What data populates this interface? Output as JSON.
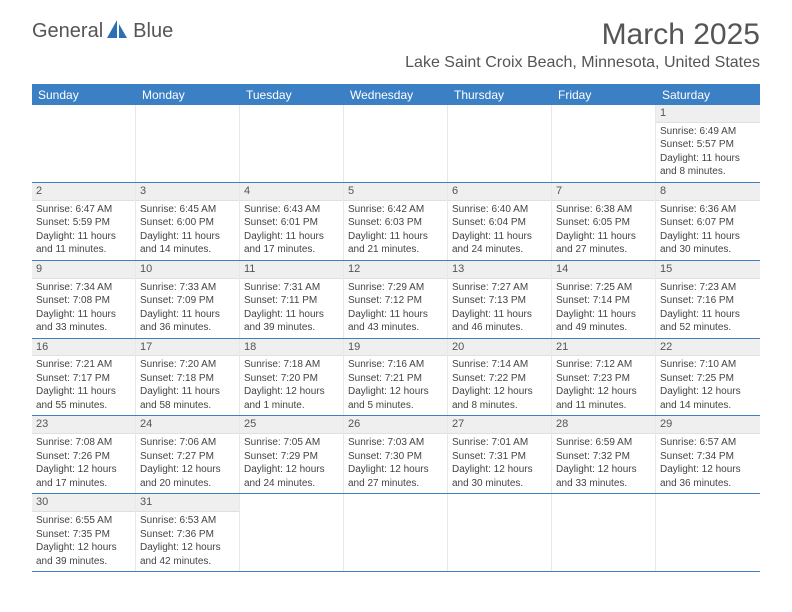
{
  "brand": {
    "name1": "General",
    "name2": "Blue",
    "icon_color": "#2d6fb3"
  },
  "title": "March 2025",
  "location": "Lake Saint Croix Beach, Minnesota, United States",
  "colors": {
    "header_bg": "#3b7fc4",
    "header_text": "#ffffff",
    "daynum_bg": "#efefef",
    "border": "#3b7fc4",
    "text": "#444444"
  },
  "weekdays": [
    "Sunday",
    "Monday",
    "Tuesday",
    "Wednesday",
    "Thursday",
    "Friday",
    "Saturday"
  ],
  "weeks": [
    [
      null,
      null,
      null,
      null,
      null,
      null,
      {
        "n": "1",
        "sr": "6:49 AM",
        "ss": "5:57 PM",
        "dl": "11 hours and 8 minutes."
      }
    ],
    [
      {
        "n": "2",
        "sr": "6:47 AM",
        "ss": "5:59 PM",
        "dl": "11 hours and 11 minutes."
      },
      {
        "n": "3",
        "sr": "6:45 AM",
        "ss": "6:00 PM",
        "dl": "11 hours and 14 minutes."
      },
      {
        "n": "4",
        "sr": "6:43 AM",
        "ss": "6:01 PM",
        "dl": "11 hours and 17 minutes."
      },
      {
        "n": "5",
        "sr": "6:42 AM",
        "ss": "6:03 PM",
        "dl": "11 hours and 21 minutes."
      },
      {
        "n": "6",
        "sr": "6:40 AM",
        "ss": "6:04 PM",
        "dl": "11 hours and 24 minutes."
      },
      {
        "n": "7",
        "sr": "6:38 AM",
        "ss": "6:05 PM",
        "dl": "11 hours and 27 minutes."
      },
      {
        "n": "8",
        "sr": "6:36 AM",
        "ss": "6:07 PM",
        "dl": "11 hours and 30 minutes."
      }
    ],
    [
      {
        "n": "9",
        "sr": "7:34 AM",
        "ss": "7:08 PM",
        "dl": "11 hours and 33 minutes."
      },
      {
        "n": "10",
        "sr": "7:33 AM",
        "ss": "7:09 PM",
        "dl": "11 hours and 36 minutes."
      },
      {
        "n": "11",
        "sr": "7:31 AM",
        "ss": "7:11 PM",
        "dl": "11 hours and 39 minutes."
      },
      {
        "n": "12",
        "sr": "7:29 AM",
        "ss": "7:12 PM",
        "dl": "11 hours and 43 minutes."
      },
      {
        "n": "13",
        "sr": "7:27 AM",
        "ss": "7:13 PM",
        "dl": "11 hours and 46 minutes."
      },
      {
        "n": "14",
        "sr": "7:25 AM",
        "ss": "7:14 PM",
        "dl": "11 hours and 49 minutes."
      },
      {
        "n": "15",
        "sr": "7:23 AM",
        "ss": "7:16 PM",
        "dl": "11 hours and 52 minutes."
      }
    ],
    [
      {
        "n": "16",
        "sr": "7:21 AM",
        "ss": "7:17 PM",
        "dl": "11 hours and 55 minutes."
      },
      {
        "n": "17",
        "sr": "7:20 AM",
        "ss": "7:18 PM",
        "dl": "11 hours and 58 minutes."
      },
      {
        "n": "18",
        "sr": "7:18 AM",
        "ss": "7:20 PM",
        "dl": "12 hours and 1 minute."
      },
      {
        "n": "19",
        "sr": "7:16 AM",
        "ss": "7:21 PM",
        "dl": "12 hours and 5 minutes."
      },
      {
        "n": "20",
        "sr": "7:14 AM",
        "ss": "7:22 PM",
        "dl": "12 hours and 8 minutes."
      },
      {
        "n": "21",
        "sr": "7:12 AM",
        "ss": "7:23 PM",
        "dl": "12 hours and 11 minutes."
      },
      {
        "n": "22",
        "sr": "7:10 AM",
        "ss": "7:25 PM",
        "dl": "12 hours and 14 minutes."
      }
    ],
    [
      {
        "n": "23",
        "sr": "7:08 AM",
        "ss": "7:26 PM",
        "dl": "12 hours and 17 minutes."
      },
      {
        "n": "24",
        "sr": "7:06 AM",
        "ss": "7:27 PM",
        "dl": "12 hours and 20 minutes."
      },
      {
        "n": "25",
        "sr": "7:05 AM",
        "ss": "7:29 PM",
        "dl": "12 hours and 24 minutes."
      },
      {
        "n": "26",
        "sr": "7:03 AM",
        "ss": "7:30 PM",
        "dl": "12 hours and 27 minutes."
      },
      {
        "n": "27",
        "sr": "7:01 AM",
        "ss": "7:31 PM",
        "dl": "12 hours and 30 minutes."
      },
      {
        "n": "28",
        "sr": "6:59 AM",
        "ss": "7:32 PM",
        "dl": "12 hours and 33 minutes."
      },
      {
        "n": "29",
        "sr": "6:57 AM",
        "ss": "7:34 PM",
        "dl": "12 hours and 36 minutes."
      }
    ],
    [
      {
        "n": "30",
        "sr": "6:55 AM",
        "ss": "7:35 PM",
        "dl": "12 hours and 39 minutes."
      },
      {
        "n": "31",
        "sr": "6:53 AM",
        "ss": "7:36 PM",
        "dl": "12 hours and 42 minutes."
      },
      null,
      null,
      null,
      null,
      null
    ]
  ],
  "labels": {
    "sunrise_prefix": "Sunrise: ",
    "sunset_prefix": "Sunset: ",
    "daylight_prefix": "Daylight: "
  }
}
